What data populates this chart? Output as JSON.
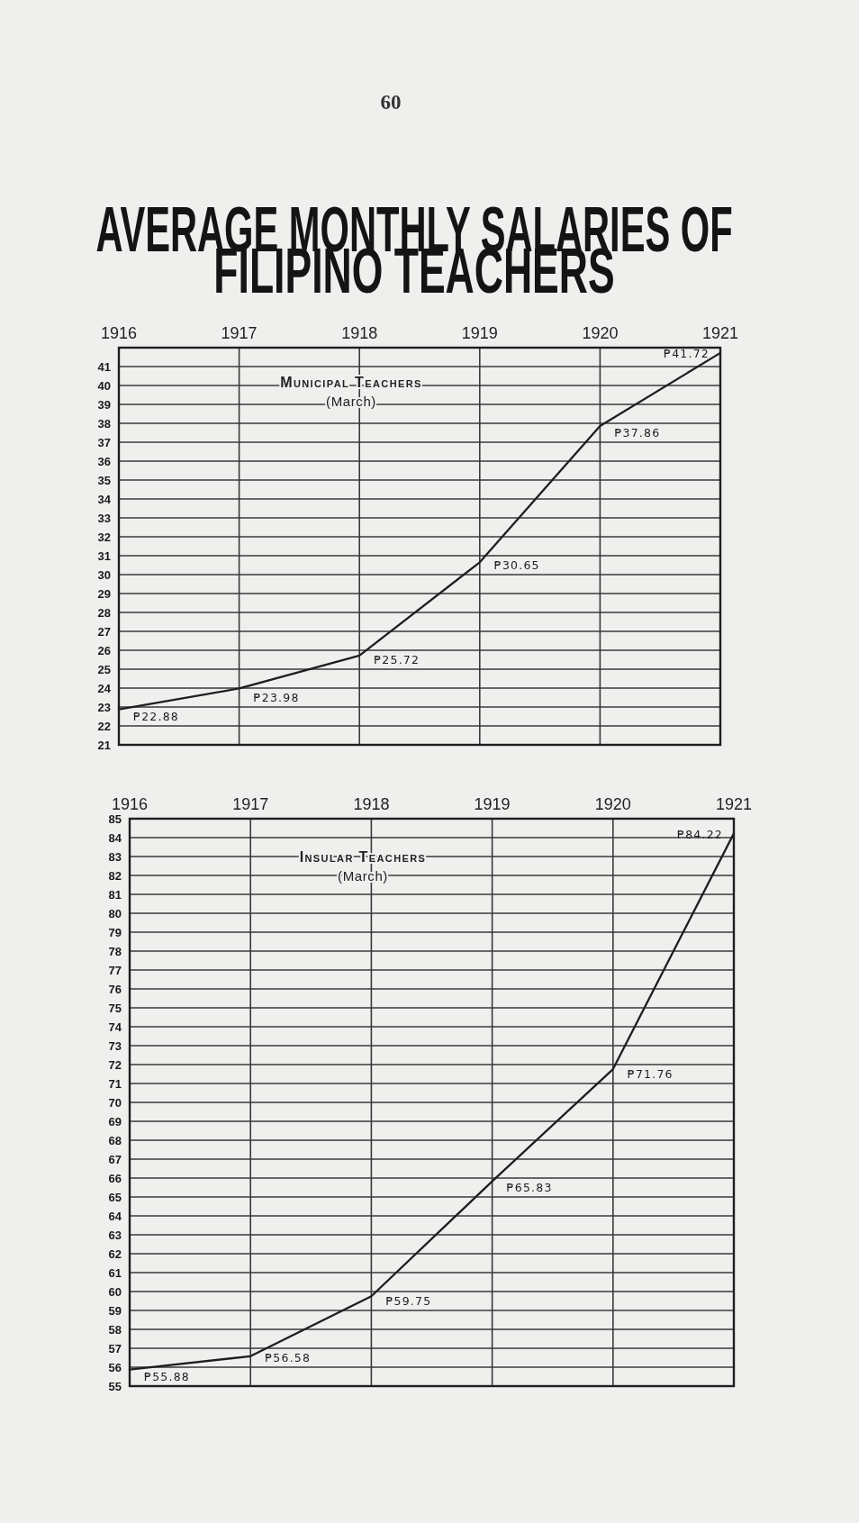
{
  "chart_data": [
    {
      "type": "line",
      "title": "AVERAGE MONTHLY SALARIES OF FILIPINO TEACHERS",
      "subtitle": "Municipal Teachers (March)",
      "annotations": [
        "60"
      ],
      "x": [
        1916,
        1917,
        1918,
        1919,
        1920,
        1921
      ],
      "values": [
        22.88,
        23.98,
        25.72,
        30.65,
        37.86,
        41.72
      ],
      "value_labels": [
        "₱22.88",
        "₱23.98",
        "₱25.72",
        "₱30.65",
        "₱37.86",
        "₱41.72"
      ],
      "color": "#1e1e1e",
      "xlim": [
        1916,
        1921
      ],
      "xticks": [
        1916,
        1917,
        1918,
        1919,
        1920,
        1921
      ],
      "ylim": [
        21,
        42
      ],
      "yticks": [
        21,
        22,
        23,
        24,
        25,
        26,
        27,
        28,
        29,
        30,
        31,
        32,
        33,
        34,
        35,
        36,
        37,
        38,
        39,
        40,
        41
      ],
      "grid": true
    },
    {
      "type": "line",
      "subtitle": "Insular Teachers (March)",
      "x": [
        1916,
        1917,
        1918,
        1919,
        1920,
        1921
      ],
      "values": [
        55.88,
        56.58,
        59.75,
        65.83,
        71.76,
        84.22
      ],
      "value_labels": [
        "₱55.88",
        "₱56.58",
        "₱59.75",
        "₱65.83",
        "₱71.76",
        "₱84.22"
      ],
      "color": "#1e1e1e",
      "xlim": [
        1916,
        1921
      ],
      "xticks": [
        1916,
        1917,
        1918,
        1919,
        1920,
        1921
      ],
      "ylim": [
        55,
        85
      ],
      "yticks": [
        55,
        56,
        57,
        58,
        59,
        60,
        61,
        62,
        63,
        64,
        65,
        66,
        67,
        68,
        69,
        70,
        71,
        72,
        73,
        74,
        75,
        76,
        77,
        78,
        79,
        80,
        81,
        82,
        83,
        84,
        85
      ],
      "grid": true
    }
  ]
}
